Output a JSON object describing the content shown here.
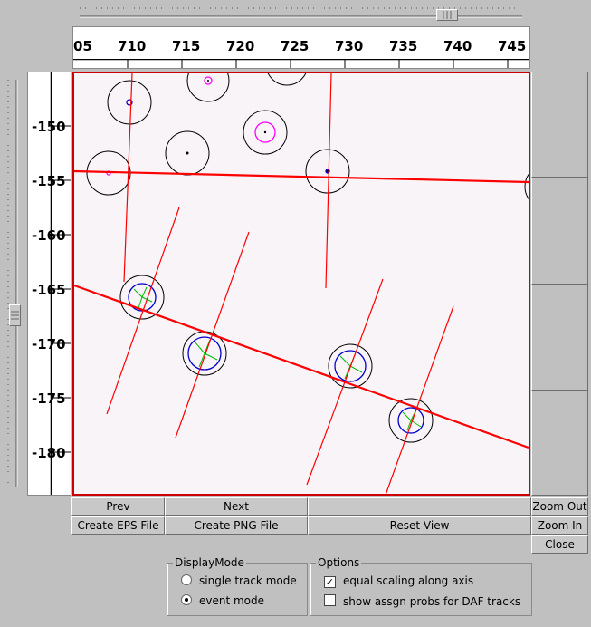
{
  "x_axis": {
    "ticks": [
      "05",
      "710",
      "715",
      "720",
      "725",
      "730",
      "735",
      "740",
      "745"
    ]
  },
  "y_axis": {
    "ticks": [
      "-150",
      "-155",
      "-160",
      "-165",
      "-170",
      "-175",
      "-180"
    ]
  },
  "buttons": {
    "prev": "Prev",
    "next": "Next",
    "zoom_out": "Zoom Out",
    "create_eps": "Create EPS File",
    "create_png": "Create PNG File",
    "reset_view": "Reset View",
    "zoom_in": "Zoom In",
    "close": "Close"
  },
  "display_mode": {
    "legend": "DisplayMode",
    "options": [
      "single track mode",
      "event mode"
    ],
    "selected": "event mode"
  },
  "options_group": {
    "legend": "Options",
    "equal_scaling": {
      "label": "equal scaling along axis",
      "checked": true
    },
    "show_probs": {
      "label": "show assgn probs for DAF tracks",
      "checked": false
    }
  },
  "colors": {
    "track": "#ff0000",
    "hit_marker": "#ff00ff",
    "fit_circle": "#0000cc",
    "residual": "#00bb00",
    "plot_bg": "#f8f4f8"
  }
}
